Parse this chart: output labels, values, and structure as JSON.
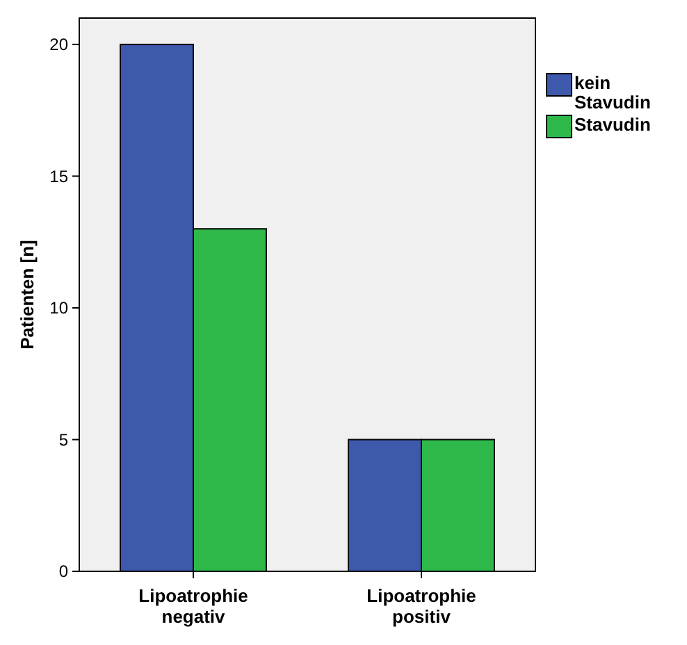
{
  "chart_data": {
    "type": "bar",
    "ylabel": "Patienten [n]",
    "categories": [
      "Lipoatrophie negativ",
      "Lipoatrophie positiv"
    ],
    "series": [
      {
        "name": "kein Stavudin",
        "color": "#3e58ac",
        "values": [
          20,
          5
        ]
      },
      {
        "name": "Stavudin",
        "color": "#2eb84a",
        "values": [
          13,
          5
        ]
      }
    ],
    "ylim": [
      0,
      21
    ],
    "yticks": [
      0,
      5,
      10,
      15,
      20
    ],
    "grid": false,
    "legend": "right"
  }
}
